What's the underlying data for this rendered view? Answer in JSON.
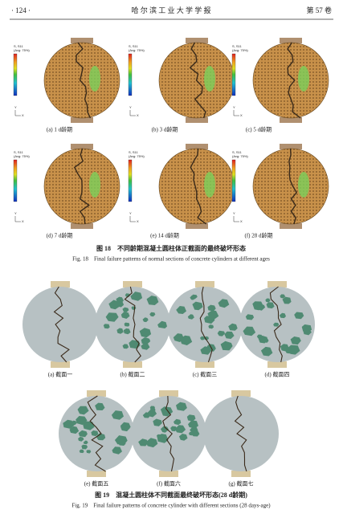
{
  "header": {
    "page": "· 124 ·",
    "journal": "哈 尔 滨 工 业 大 学 学 报",
    "volume": "第 57 卷"
  },
  "figure18": {
    "legend_title": "S, S11",
    "legend_subtitle": "(Avg: 75%)",
    "axis_labels": [
      "Y",
      "X"
    ],
    "panels": [
      {
        "label": "(a) 1 d龄期"
      },
      {
        "label": "(b) 3 d龄期"
      },
      {
        "label": "(c) 5 d龄期"
      },
      {
        "label": "(d) 7 d龄期"
      },
      {
        "label": "(e) 14 d龄期"
      },
      {
        "label": "(f) 28 d龄期"
      }
    ],
    "caption_cn": "图 18　不同龄期混凝土圆柱体正截面的最终破坏形态",
    "caption_en": "Fig. 18　Final failure patterns of normal sections of concrete cylinders at different ages"
  },
  "figure19": {
    "panels": [
      {
        "label": "(a) 截面一"
      },
      {
        "label": "(b) 截面二"
      },
      {
        "label": "(c) 截面三"
      },
      {
        "label": "(d) 截面四"
      },
      {
        "label": "(e) 截面五"
      },
      {
        "label": "(f) 截面六"
      },
      {
        "label": "(g) 截面七"
      }
    ],
    "caption_cn": "图 19　混凝土圆柱体不同截面最终破坏形态(28 d龄期)",
    "caption_en": "Fig. 19　Final failure patterns of concrete cylinder with different sections (28 days-age)"
  }
}
